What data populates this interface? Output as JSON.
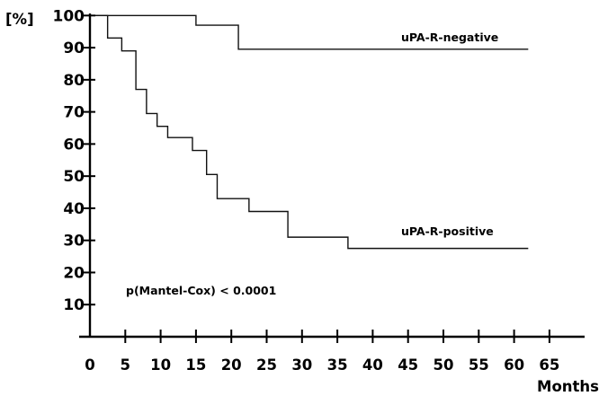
{
  "chart_data": {
    "type": "line",
    "title": "",
    "ylabel": "[%]",
    "xlabel": "Months",
    "xlim": [
      0,
      65
    ],
    "ylim": [
      0,
      100
    ],
    "x_ticks": [
      0,
      5,
      10,
      15,
      20,
      25,
      30,
      35,
      40,
      45,
      50,
      55,
      60,
      65
    ],
    "y_ticks": [
      10,
      20,
      30,
      40,
      50,
      60,
      70,
      80,
      90,
      100
    ],
    "grid": false,
    "step": true,
    "series": [
      {
        "name": "uPA-R-negative",
        "x": [
          0,
          15,
          21,
          62
        ],
        "y": [
          100,
          97,
          89.5,
          89.5
        ]
      },
      {
        "name": "uPA-R-positive",
        "x": [
          0,
          2.5,
          4.5,
          6.5,
          8,
          9.5,
          11,
          14.5,
          16.5,
          18,
          22.5,
          28,
          36.5,
          62
        ],
        "y": [
          100,
          93,
          89,
          77,
          69.5,
          65.5,
          62,
          58,
          50.5,
          43,
          39,
          31,
          27.5,
          27.5
        ]
      }
    ],
    "annotations": [
      {
        "text": "p(Mantel-Cox) < 0.0001"
      }
    ]
  }
}
